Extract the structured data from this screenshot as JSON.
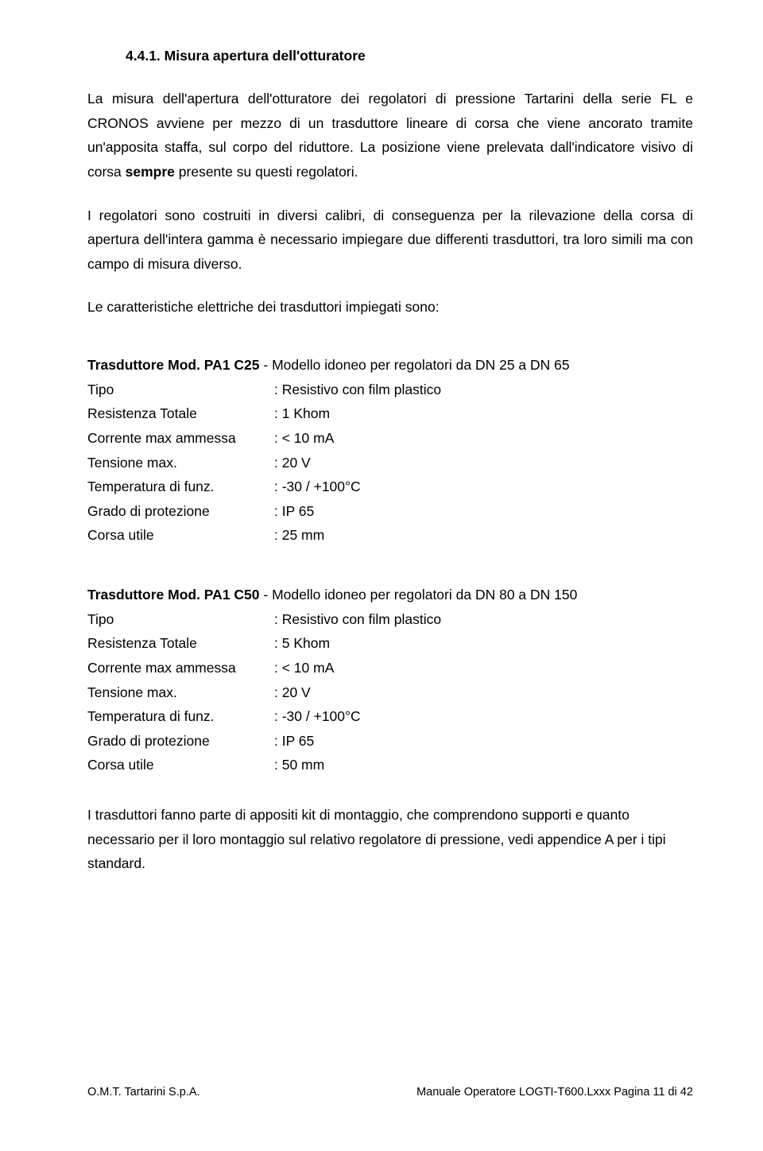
{
  "heading": "4.4.1.  Misura apertura dell'otturatore",
  "paragraphs": {
    "p1": "La misura dell'apertura dell'otturatore dei regolatori di pressione Tartarini della serie FL e CRONOS avviene per mezzo di un trasduttore lineare di corsa che viene ancorato tramite un'apposita staffa, sul corpo del riduttore. La posizione viene prelevata dall'indicatore visivo di corsa ",
    "p1_bold": "sempre",
    "p1_after": " presente su questi regolatori.",
    "p2": "I regolatori sono costruiti in diversi calibri, di conseguenza per la rilevazione della corsa di apertura dell'intera gamma è necessario impiegare due differenti trasduttori, tra loro simili ma con campo di misura diverso.",
    "p3": "Le caratteristiche elettriche dei trasduttori impiegati sono:",
    "closing": "I trasduttori fanno parte di appositi kit di montaggio, che comprendono supporti e quanto necessario per il loro montaggio sul relativo regolatore di pressione, vedi appendice A per i tipi standard."
  },
  "transducer1": {
    "title_bold": "Trasduttore Mod. PA1 C25",
    "title_rest": " - Modello idoneo per regolatori da DN 25 a DN 65",
    "rows": [
      {
        "label": "Tipo",
        "value": ": Resistivo con film plastico"
      },
      {
        "label": "Resistenza Totale",
        "value": ": 1 Khom"
      },
      {
        "label": "Corrente max ammessa",
        "value": ": < 10 mA"
      },
      {
        "label": "Tensione max.",
        "value": ": 20 V"
      },
      {
        "label": "Temperatura di funz.",
        "value": ": -30 / +100°C"
      },
      {
        "label": "Grado di protezione",
        "value": ": IP 65"
      },
      {
        "label": "Corsa utile",
        "value": ": 25 mm"
      }
    ]
  },
  "transducer2": {
    "title_bold": "Trasduttore Mod. PA1 C50",
    "title_rest": " - Modello idoneo per regolatori da DN 80 a DN 150",
    "rows": [
      {
        "label": "Tipo",
        "value": ": Resistivo con film plastico"
      },
      {
        "label": "Resistenza Totale",
        "value": ": 5 Khom"
      },
      {
        "label": "Corrente max ammessa",
        "value": ": < 10 mA"
      },
      {
        "label": "Tensione max.",
        "value": ": 20 V"
      },
      {
        "label": "Temperatura di funz.",
        "value": ": -30 / +100°C"
      },
      {
        "label": "Grado di protezione",
        "value": ": IP 65"
      },
      {
        "label": "Corsa utile",
        "value": ": 50 mm"
      }
    ]
  },
  "footer": {
    "left": "O.M.T. Tartarini S.p.A.",
    "right": "Manuale Operatore LOGTI-T600.Lxxx   Pagina 11 di 42"
  }
}
